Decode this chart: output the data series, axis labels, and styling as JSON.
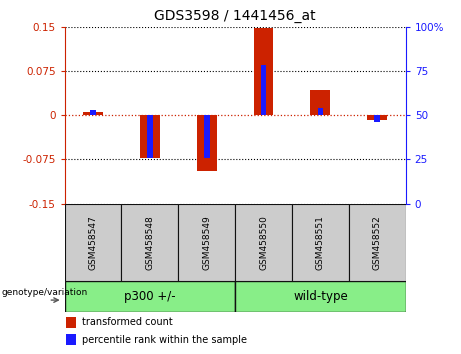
{
  "title": "GDS3598 / 1441456_at",
  "samples": [
    "GSM458547",
    "GSM458548",
    "GSM458549",
    "GSM458550",
    "GSM458551",
    "GSM458552"
  ],
  "transformed_counts": [
    0.005,
    -0.073,
    -0.095,
    0.148,
    0.042,
    -0.008
  ],
  "percentile_ranks": [
    53,
    26,
    26,
    78,
    54,
    46
  ],
  "group_defs": [
    {
      "name": "p300 +/-",
      "start": 0,
      "end": 3
    },
    {
      "name": "wild-type",
      "start": 3,
      "end": 6
    }
  ],
  "ylim_left": [
    -0.15,
    0.15
  ],
  "ylim_right": [
    0,
    100
  ],
  "yticks_left": [
    -0.15,
    -0.075,
    0,
    0.075,
    0.15
  ],
  "ytick_labels_left": [
    "-0.15",
    "-0.075",
    "0",
    "0.075",
    "0.15"
  ],
  "yticks_right": [
    0,
    25,
    50,
    75,
    100
  ],
  "ytick_labels_right": [
    "0",
    "25",
    "50",
    "75",
    "100%"
  ],
  "bar_color_red": "#cc2200",
  "bar_color_blue": "#1a1aff",
  "left_axis_color": "#cc2200",
  "right_axis_color": "#1a1aff",
  "legend_red_label": "transformed count",
  "legend_blue_label": "percentile rank within the sample",
  "genotype_label": "genotype/variation",
  "group_border_color": "#111111",
  "sample_box_color": "#cccccc",
  "green_color": "#88ee88",
  "red_bar_width": 0.35,
  "blue_bar_width": 0.1
}
